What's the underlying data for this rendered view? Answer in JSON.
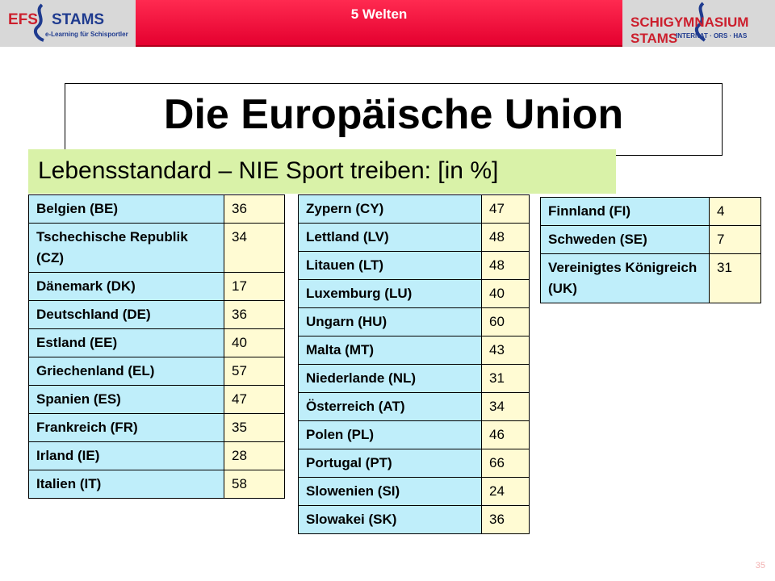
{
  "header": {
    "left_logo": {
      "brand": "EFS",
      "name": "STAMS",
      "tagline": "e-Learning für Schisportler"
    },
    "title": "5 Welten",
    "right_logo": {
      "name": "SCHIGYMNASIUM STAMS",
      "tagline": "INTERNAT · ORS · HAS"
    }
  },
  "colors": {
    "header_red": "#e4002f",
    "subtitle_bg": "#d9f2a8",
    "name_cell": "#bfeefa",
    "value_cell": "#fffbd3",
    "logo_red": "#cc1f2d",
    "logo_blue": "#1f3b8f"
  },
  "slide": {
    "title": "Die Europäische Union",
    "subtitle": "Lebensstandard  – NIE Sport treiben: [in %]"
  },
  "tables": [
    {
      "rows": [
        {
          "country": "Belgien (BE)",
          "value": "36"
        },
        {
          "country": "Tschechische Republik (CZ)",
          "value": "34"
        },
        {
          "country": "Dänemark (DK)",
          "value": "17"
        },
        {
          "country": "Deutschland (DE)",
          "value": "36"
        },
        {
          "country": "Estland (EE)",
          "value": "40"
        },
        {
          "country": "Griechenland (EL)",
          "value": "57"
        },
        {
          "country": "Spanien (ES)",
          "value": "47"
        },
        {
          "country": "Frankreich (FR)",
          "value": "35"
        },
        {
          "country": "Irland (IE)",
          "value": "28"
        },
        {
          "country": "Italien (IT)",
          "value": "58"
        }
      ]
    },
    {
      "rows": [
        {
          "country": "Zypern (CY)",
          "value": "47"
        },
        {
          "country": "Lettland (LV)",
          "value": "48"
        },
        {
          "country": "Litauen (LT)",
          "value": "48"
        },
        {
          "country": "Luxemburg (LU)",
          "value": "40"
        },
        {
          "country": "Ungarn (HU)",
          "value": "60"
        },
        {
          "country": "Malta (MT)",
          "value": "43"
        },
        {
          "country": "Niederlande (NL)",
          "value": "31"
        },
        {
          "country": "Österreich (AT)",
          "value": "34"
        },
        {
          "country": "Polen (PL)",
          "value": "46"
        },
        {
          "country": "Portugal (PT)",
          "value": "66"
        },
        {
          "country": "Slowenien (SI)",
          "value": "24"
        },
        {
          "country": "Slowakei (SK)",
          "value": "36"
        }
      ]
    },
    {
      "rows": [
        {
          "country": "Finnland (FI)",
          "value": "4"
        },
        {
          "country": "Schweden (SE)",
          "value": "7"
        },
        {
          "country": "Vereinigtes Königreich (UK)",
          "value": "31"
        }
      ]
    }
  ],
  "footer": {
    "page_number": "35"
  }
}
